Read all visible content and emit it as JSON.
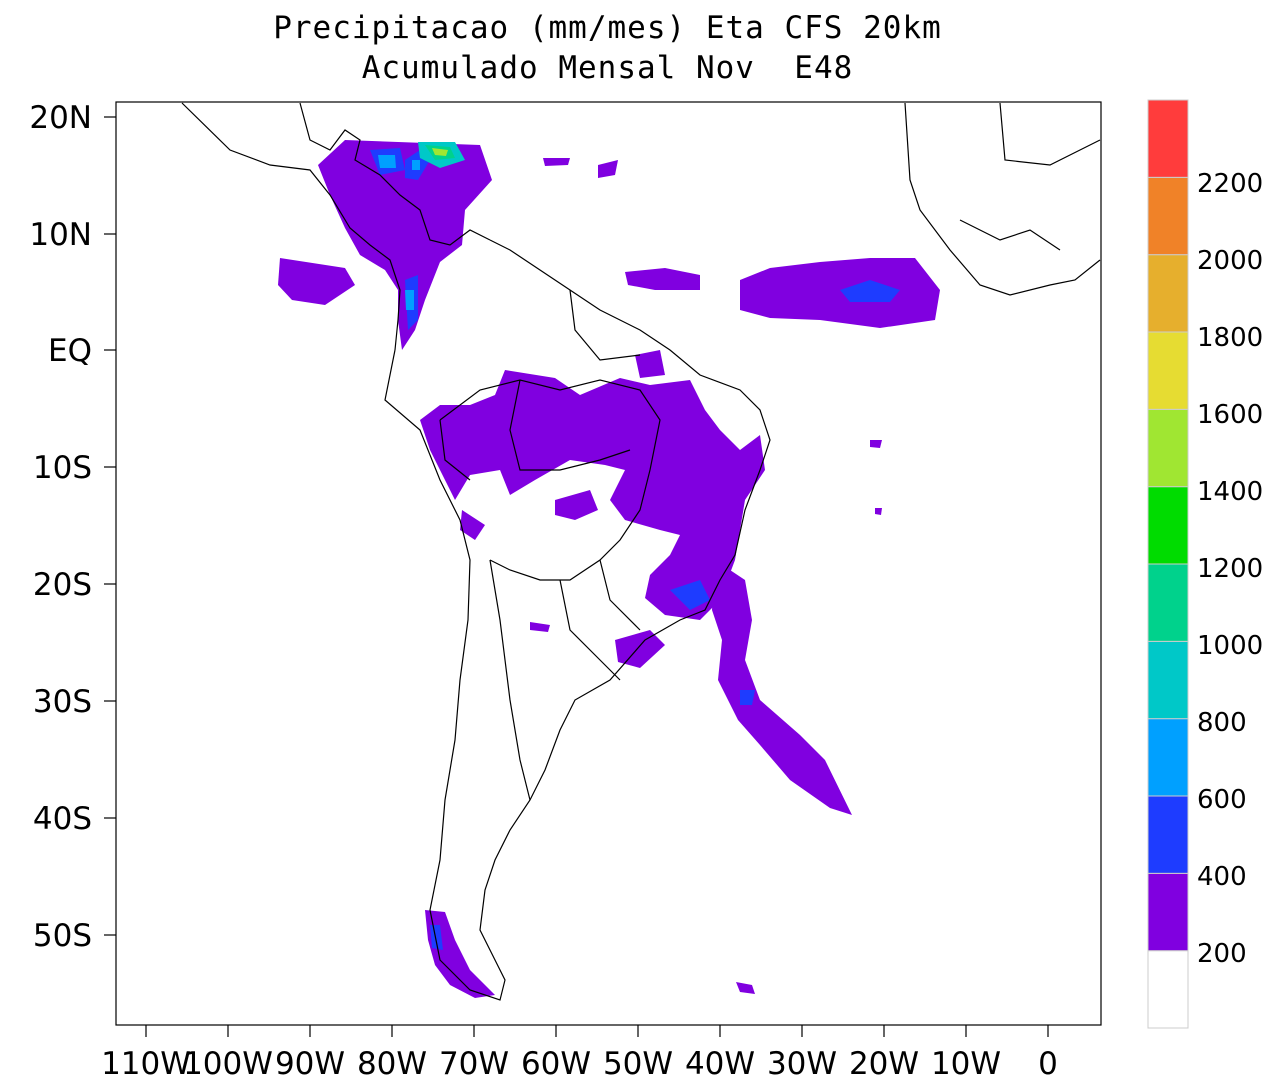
{
  "title_line1": "Precipitacao (mm/mes) Eta CFS 20km",
  "title_line2": "Acumulado Mensal Nov  E48",
  "lat_labels": [
    "20N",
    "10N",
    "EQ",
    "10S",
    "20S",
    "30S",
    "40S",
    "50S"
  ],
  "lon_labels": [
    "110W",
    "100W",
    "90W",
    "80W",
    "70W",
    "60W",
    "50W",
    "40W",
    "30W",
    "20W",
    "10W",
    "0"
  ],
  "colorbar": {
    "labels": [
      "200",
      "400",
      "600",
      "800",
      "1000",
      "1200",
      "1400",
      "1600",
      "1800",
      "2000",
      "2200"
    ],
    "colors": [
      "#ffffff",
      "#8000e0",
      "#1e3cff",
      "#00a0ff",
      "#00c8c8",
      "#00d28c",
      "#00dc00",
      "#a0e632",
      "#e6dc32",
      "#e6af2d",
      "#f08228",
      "#ff3c3c"
    ]
  },
  "precip_colors": {
    "level1": "#8000e0",
    "level2": "#1e3cff",
    "level3": "#00a0ff",
    "level4": "#00c8c8",
    "level5": "#00d28c",
    "level6": "#a0e632"
  }
}
